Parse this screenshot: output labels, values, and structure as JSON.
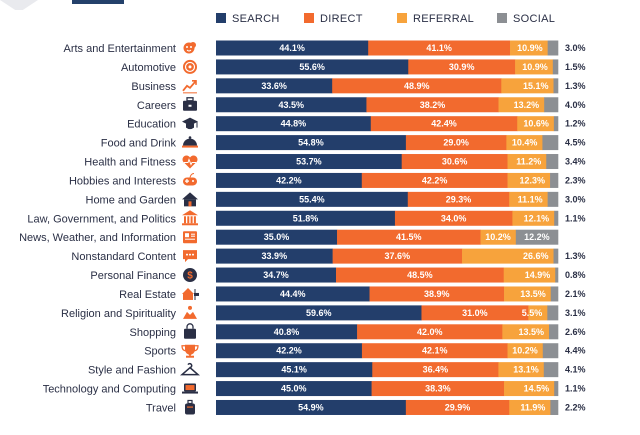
{
  "chart_data": {
    "type": "bar",
    "orientation": "horizontal",
    "stacked": true,
    "normalized": true,
    "legend_position": "top",
    "grid": false,
    "series": [
      {
        "name": "SEARCH",
        "color": "#233e6b",
        "values": [
          44.1,
          55.6,
          33.6,
          43.5,
          44.8,
          54.8,
          53.7,
          42.2,
          55.4,
          51.8,
          35.0,
          33.9,
          34.7,
          44.4,
          59.6,
          40.8,
          42.2,
          45.1,
          45.0,
          54.9
        ]
      },
      {
        "name": "DIRECT",
        "color": "#f26a2e",
        "values": [
          41.1,
          30.9,
          48.9,
          38.2,
          42.4,
          29.0,
          30.6,
          42.2,
          29.3,
          34.0,
          41.5,
          37.6,
          48.5,
          38.9,
          31.0,
          42.0,
          42.1,
          36.4,
          38.3,
          29.9
        ]
      },
      {
        "name": "REFERRAL",
        "color": "#f7a33c",
        "values": [
          10.9,
          10.9,
          15.1,
          13.2,
          10.6,
          10.4,
          11.2,
          12.3,
          11.1,
          12.1,
          10.2,
          26.6,
          14.9,
          13.5,
          5.5,
          13.5,
          10.2,
          13.1,
          14.5,
          11.9
        ]
      },
      {
        "name": "SOCIAL",
        "color": "#8c8f93",
        "values": [
          3.0,
          1.5,
          1.3,
          4.0,
          1.2,
          4.5,
          3.4,
          2.3,
          3.0,
          1.1,
          12.2,
          1.3,
          0.8,
          2.1,
          3.1,
          2.6,
          4.4,
          4.1,
          1.1,
          2.2
        ]
      }
    ],
    "categories": [
      "Arts and Entertainment",
      "Automotive",
      "Business",
      "Careers",
      "Education",
      "Food and Drink",
      "Health and Fitness",
      "Hobbies and Interests",
      "Home and Garden",
      "Law, Government, and Politics",
      "News, Weather, and Information",
      "Nonstandard Content",
      "Personal Finance",
      "Real Estate",
      "Religion and Spirituality",
      "Shopping",
      "Sports",
      "Style and Fashion",
      "Technology and Computing",
      "Travel"
    ],
    "category_icons": [
      "theater-masks-icon",
      "steering-wheel-icon",
      "chart-trend-icon",
      "briefcase-icon",
      "graduation-cap-icon",
      "cloche-icon",
      "heart-pulse-icon",
      "gamepad-icon",
      "house-icon",
      "courthouse-icon",
      "newspaper-icon",
      "chat-bubble-icon",
      "dollar-coin-icon",
      "house-for-sale-icon",
      "pray-icon",
      "shopping-bag-icon",
      "trophy-icon",
      "hanger-icon",
      "laptop-icon",
      "suitcase-icon"
    ],
    "icon_color": "#f26a2e"
  }
}
